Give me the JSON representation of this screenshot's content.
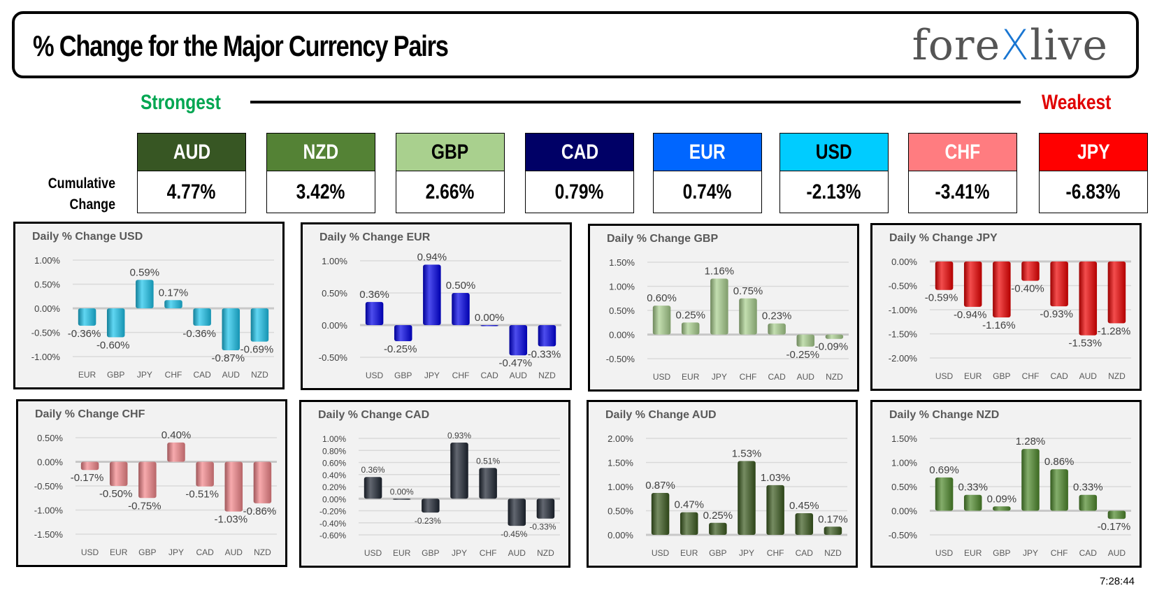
{
  "header": {
    "title": "% Change for the Major Currency Pairs",
    "logo": {
      "part1": "fore",
      "part2": "X",
      "part3": "live"
    }
  },
  "scale": {
    "strongest": "Strongest",
    "weakest": "Weakest"
  },
  "cumulative_label": [
    "Cumulative",
    "Change"
  ],
  "currencies": [
    {
      "code": "AUD",
      "value": "4.77%",
      "color": "#375623",
      "text": "#ffffff"
    },
    {
      "code": "NZD",
      "value": "3.42%",
      "color": "#548235",
      "text": "#ffffff"
    },
    {
      "code": "GBP",
      "value": "2.66%",
      "color": "#a9d08e",
      "text": "#000000"
    },
    {
      "code": "CAD",
      "value": "0.79%",
      "color": "#000066",
      "text": "#ffffff"
    },
    {
      "code": "EUR",
      "value": "0.74%",
      "color": "#0066ff",
      "text": "#ffffff"
    },
    {
      "code": "USD",
      "value": "-2.13%",
      "color": "#00ccff",
      "text": "#000000"
    },
    {
      "code": "CHF",
      "value": "-3.41%",
      "color": "#ff7c80",
      "text": "#ffffff"
    },
    {
      "code": "JPY",
      "value": "-6.83%",
      "color": "#ff0000",
      "text": "#ffffff"
    }
  ],
  "chart_data": [
    {
      "type": "bar",
      "title": "Daily % Change USD",
      "color": "#1cc4ec",
      "categories": [
        "EUR",
        "GBP",
        "JPY",
        "CHF",
        "CAD",
        "AUD",
        "NZD"
      ],
      "values": [
        -0.36,
        -0.6,
        0.59,
        0.17,
        -0.36,
        -0.87,
        -0.69
      ],
      "ylim": [
        -1.0,
        1.0
      ],
      "ticks": [
        1.0,
        0.5,
        0.0,
        -0.5,
        -1.0
      ],
      "grid": true
    },
    {
      "type": "bar",
      "title": "Daily % Change EUR",
      "color": "#0000e6",
      "categories": [
        "USD",
        "GBP",
        "JPY",
        "CHF",
        "CAD",
        "AUD",
        "NZD"
      ],
      "values": [
        0.36,
        -0.25,
        0.94,
        0.5,
        0.0,
        -0.47,
        -0.33
      ],
      "ylim": [
        -0.5,
        1.0
      ],
      "ticks": [
        1.0,
        0.5,
        0.0,
        -0.5
      ],
      "grid": true
    },
    {
      "type": "bar",
      "title": "Daily % Change GBP",
      "color": "#a9d08e",
      "categories": [
        "USD",
        "EUR",
        "JPY",
        "CHF",
        "CAD",
        "AUD",
        "NZD"
      ],
      "values": [
        0.6,
        0.25,
        1.16,
        0.75,
        0.23,
        -0.25,
        -0.09
      ],
      "ylim": [
        -0.5,
        1.5
      ],
      "ticks": [
        1.5,
        1.0,
        0.5,
        0.0,
        -0.5
      ],
      "grid": true
    },
    {
      "type": "bar",
      "title": "Daily % Change JPY",
      "color": "#ee0000",
      "categories": [
        "USD",
        "EUR",
        "GBP",
        "CHF",
        "CAD",
        "AUD",
        "NZD"
      ],
      "values": [
        -0.59,
        -0.94,
        -1.16,
        -0.4,
        -0.93,
        -1.53,
        -1.28
      ],
      "ylim": [
        -2.0,
        0.0
      ],
      "ticks": [
        0.0,
        -0.5,
        -1.0,
        -1.5,
        -2.0
      ],
      "grid": true
    },
    {
      "type": "bar",
      "title": "Daily % Change CHF",
      "color": "#f4868a",
      "categories": [
        "USD",
        "EUR",
        "GBP",
        "JPY",
        "CAD",
        "AUD",
        "NZD"
      ],
      "values": [
        -0.17,
        -0.5,
        -0.75,
        0.4,
        -0.51,
        -1.03,
        -0.86
      ],
      "ylim": [
        -1.5,
        0.5
      ],
      "ticks": [
        0.5,
        0.0,
        -0.5,
        -1.0,
        -1.5
      ],
      "grid": true
    },
    {
      "type": "bar",
      "title": "Daily % Change CAD",
      "color": "#1e2633",
      "categories": [
        "USD",
        "EUR",
        "GBP",
        "JPY",
        "CHF",
        "AUD",
        "NZD"
      ],
      "values": [
        0.36,
        0.0,
        -0.23,
        0.93,
        0.51,
        -0.45,
        -0.33
      ],
      "ylim": [
        -0.6,
        1.0
      ],
      "ticks": [
        1.0,
        0.8,
        0.6,
        0.4,
        0.2,
        0.0,
        -0.2,
        -0.4,
        -0.6
      ],
      "grid": true
    },
    {
      "type": "bar",
      "title": "Daily % Change AUD",
      "color": "#3b5a1f",
      "categories": [
        "USD",
        "EUR",
        "GBP",
        "JPY",
        "CHF",
        "CAD",
        "NZD"
      ],
      "values": [
        0.87,
        0.47,
        0.25,
        1.53,
        1.03,
        0.45,
        0.17
      ],
      "ylim": [
        0.0,
        2.0
      ],
      "ticks": [
        2.0,
        1.5,
        1.0,
        0.5,
        0.0
      ],
      "grid": true
    },
    {
      "type": "bar",
      "title": "Daily % Change NZD",
      "color": "#4f8a2c",
      "categories": [
        "USD",
        "EUR",
        "GBP",
        "JPY",
        "CHF",
        "CAD",
        "AUD"
      ],
      "values": [
        0.69,
        0.33,
        0.09,
        1.28,
        0.86,
        0.33,
        -0.17
      ],
      "ylim": [
        -0.5,
        1.5
      ],
      "ticks": [
        1.5,
        1.0,
        0.5,
        0.0,
        -0.5
      ],
      "grid": true
    }
  ],
  "timestamp": "7:28:44"
}
